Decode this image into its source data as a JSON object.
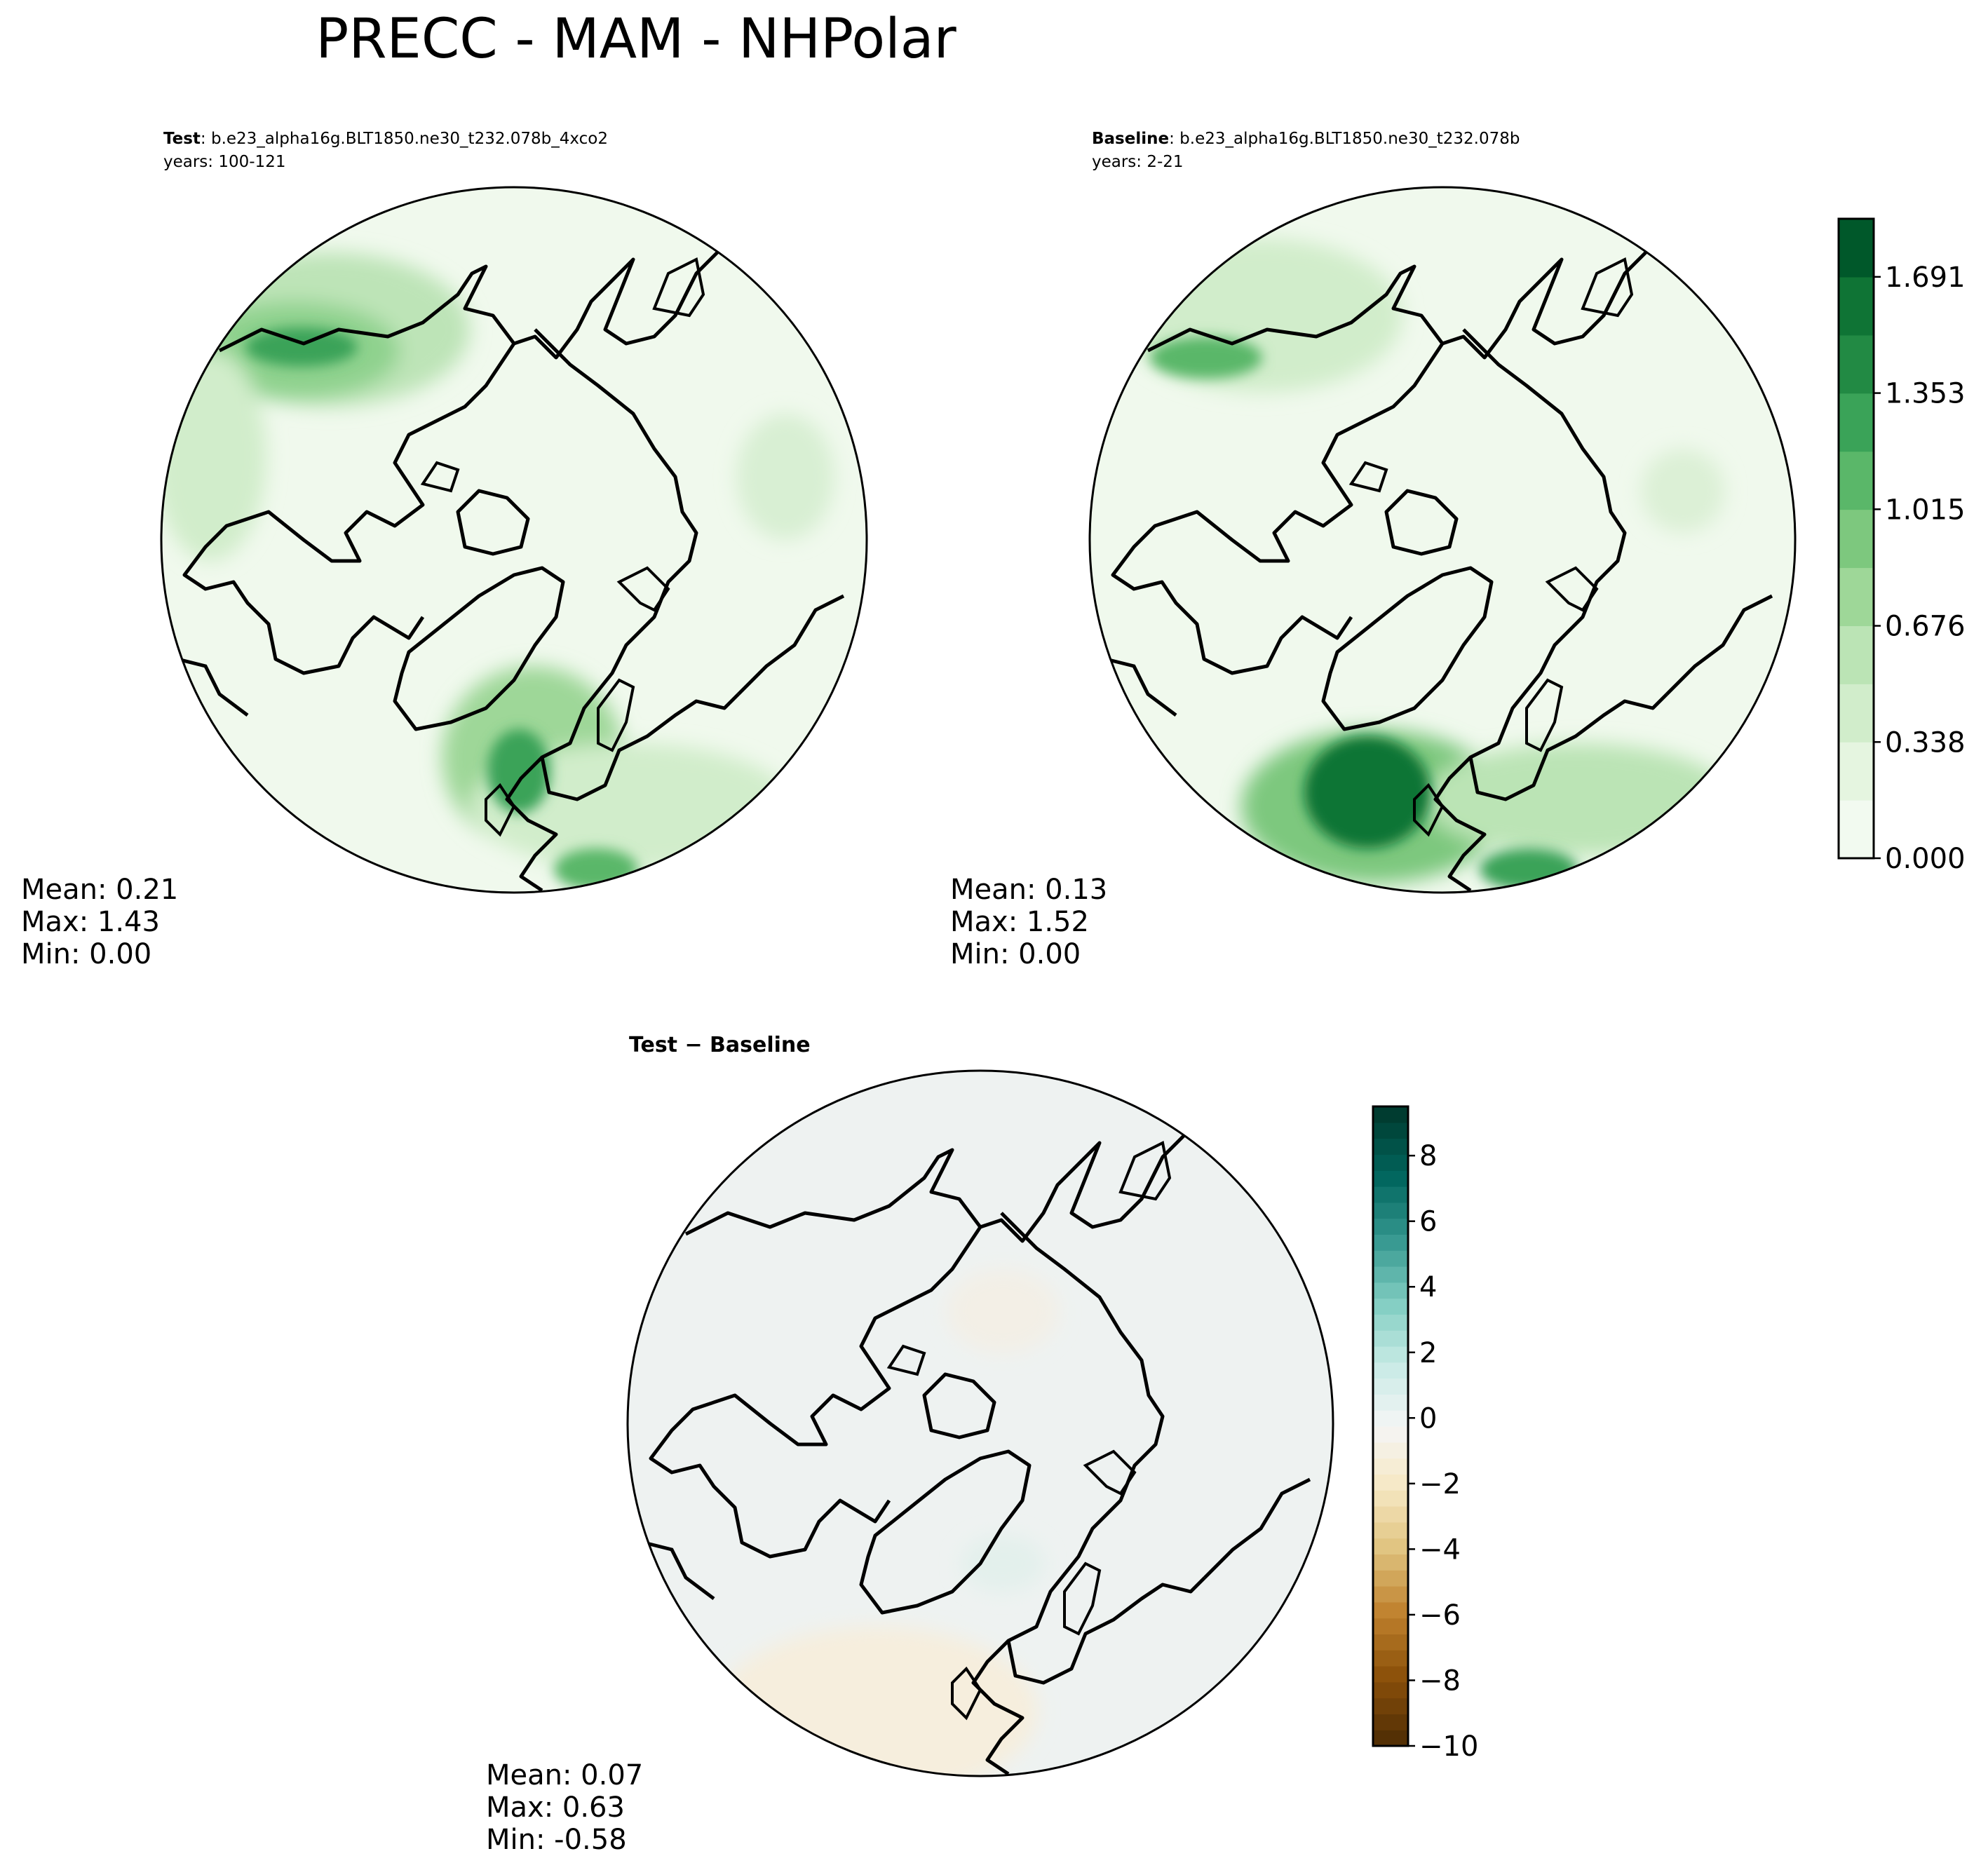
{
  "figure": {
    "title": "PRECC - MAM - NHPolar"
  },
  "chart_data": [
    {
      "type": "heatmap",
      "panel": "test",
      "label_bold": "Test",
      "label_rest": ": b.e23_alpha16g.BLT1850.ne30_t232.078b_4xco2",
      "years": "years: 100-121",
      "stats": {
        "mean": "Mean:  0.21",
        "max": "Max:  1.43",
        "min": "Min:  0.00"
      },
      "projection": "North Polar Stereographic",
      "colormap": "Greens",
      "vmin": 0.0,
      "vmax": 1.86
    },
    {
      "type": "heatmap",
      "panel": "baseline",
      "label_bold": "Baseline",
      "label_rest": ": b.e23_alpha16g.BLT1850.ne30_t232.078b",
      "years": "years: 2-21",
      "stats": {
        "mean": "Mean:  0.13",
        "max": "Max:  1.52",
        "min": "Min:  0.00"
      },
      "projection": "North Polar Stereographic",
      "colormap": "Greens",
      "vmin": 0.0,
      "vmax": 1.86,
      "colorbar": {
        "ticks": [
          0.0,
          0.338,
          0.676,
          1.015,
          1.353,
          1.691
        ],
        "tick_labels": [
          "0.000",
          "0.338",
          "0.676",
          "1.015",
          "1.353",
          "1.691"
        ],
        "levels": 11,
        "colors": [
          "#f2faf0",
          "#e5f5e0",
          "#d1edcb",
          "#bbe4b5",
          "#9ed798",
          "#7dc87e",
          "#5ab769",
          "#3aa358",
          "#228a44",
          "#0f7435",
          "#00582a"
        ]
      }
    },
    {
      "type": "heatmap",
      "panel": "difference",
      "label_bold": "Test − Baseline",
      "stats": {
        "mean": "Mean:  0.07",
        "max": "Max:  0.63",
        "min": "Min: -0.58"
      },
      "projection": "North Polar Stereographic",
      "colormap": "BrBG",
      "vmin": -10,
      "vmax": 9.5,
      "colorbar": {
        "ticks": [
          -10,
          -8,
          -6,
          -4,
          -2,
          0,
          2,
          4,
          6,
          8
        ],
        "tick_labels": [
          "−10",
          "−8",
          "−6",
          "−4",
          "−2",
          "0",
          "2",
          "4",
          "6",
          "8"
        ],
        "colors": [
          "#543005",
          "#8c510a",
          "#bf812d",
          "#dfc27d",
          "#f6e8c3",
          "#f5f5f5",
          "#c7eae5",
          "#80cdc1",
          "#35978f",
          "#01665e",
          "#003c30"
        ]
      }
    }
  ]
}
